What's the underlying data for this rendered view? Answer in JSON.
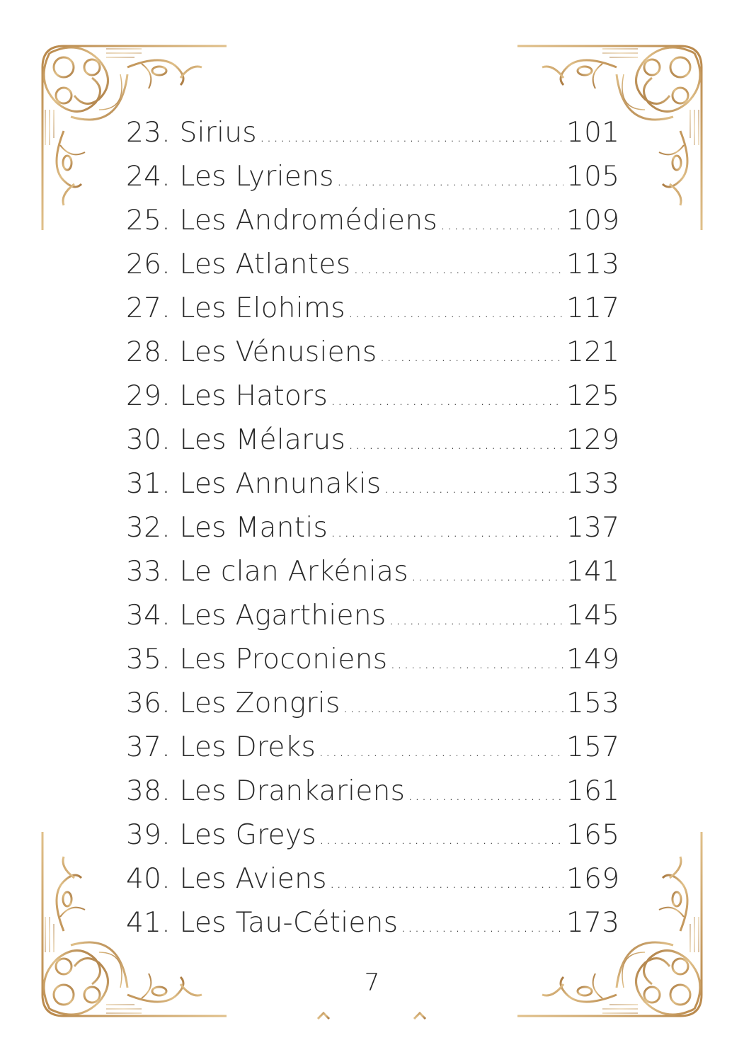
{
  "toc": [
    {
      "title": "23. Sirius",
      "page": "101"
    },
    {
      "title": "24. Les Lyriens",
      "page": "105"
    },
    {
      "title": "25. Les Andromédiens",
      "page": "109"
    },
    {
      "title": "26. Les Atlantes",
      "page": "113"
    },
    {
      "title": "27. Les Elohims",
      "page": "117"
    },
    {
      "title": "28. Les Vénusiens",
      "page": "121"
    },
    {
      "title": "29. Les Hators",
      "page": "125"
    },
    {
      "title": "30. Les Mélarus",
      "page": "129"
    },
    {
      "title": "31. Les Annunakis",
      "page": "133"
    },
    {
      "title": "32. Les Mantis",
      "page": "137"
    },
    {
      "title": "33. Le clan Arkénias",
      "page": "141"
    },
    {
      "title": "34. Les Agarthiens",
      "page": "145"
    },
    {
      "title": "35. Les Proconiens",
      "page": "149"
    },
    {
      "title": "36. Les Zongris",
      "page": "153"
    },
    {
      "title": "37. Les Dreks",
      "page": "157"
    },
    {
      "title": "38. Les Drankariens",
      "page": "161"
    },
    {
      "title": "39. Les Greys",
      "page": "165"
    },
    {
      "title": "40. Les Aviens",
      "page": "169"
    },
    {
      "title": "41. Les Tau-Cétiens",
      "page": "173"
    }
  ],
  "page_number": "7",
  "colors": {
    "ornament": "#c49a5a",
    "text": "#2a2a2a"
  }
}
